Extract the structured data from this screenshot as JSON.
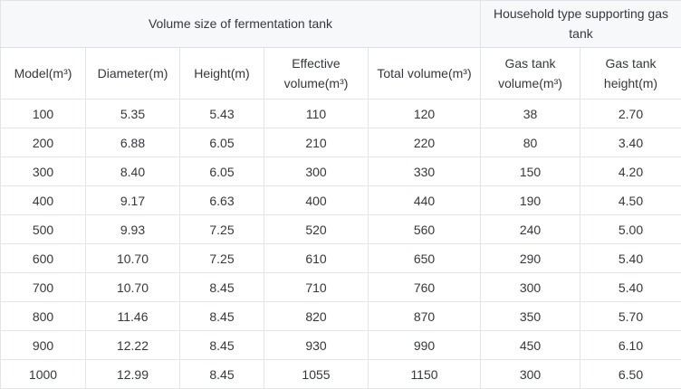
{
  "table": {
    "group_headers": [
      {
        "label": "Volume size of fermentation tank",
        "colspan": 5
      },
      {
        "label": "Household type supporting gas tank",
        "colspan": 2
      }
    ],
    "columns": [
      "Model(m³)",
      "Diameter(m)",
      "Height(m)",
      "Effective volume(m³)",
      "Total volume(m³)",
      "Gas tank volume(m³)",
      "Gas tank height(m)"
    ],
    "rows": [
      [
        "100",
        "5.35",
        "5.43",
        "110",
        "120",
        "38",
        "2.70"
      ],
      [
        "200",
        "6.88",
        "6.05",
        "210",
        "220",
        "80",
        "3.40"
      ],
      [
        "300",
        "8.40",
        "6.05",
        "300",
        "330",
        "150",
        "4.20"
      ],
      [
        "400",
        "9.17",
        "6.63",
        "400",
        "440",
        "190",
        "4.50"
      ],
      [
        "500",
        "9.93",
        "7.25",
        "520",
        "560",
        "240",
        "5.00"
      ],
      [
        "600",
        "10.70",
        "7.25",
        "610",
        "650",
        "290",
        "5.40"
      ],
      [
        "700",
        "10.70",
        "8.45",
        "710",
        "760",
        "300",
        "5.40"
      ],
      [
        "800",
        "11.46",
        "8.45",
        "820",
        "870",
        "350",
        "5.70"
      ],
      [
        "900",
        "12.22",
        "8.45",
        "930",
        "990",
        "450",
        "6.10"
      ],
      [
        "1000",
        "12.99",
        "8.45",
        "1055",
        "1150",
        "300",
        "6.50"
      ]
    ]
  },
  "colors": {
    "group_header_bg": "#f7f8fa",
    "border": "#e2e4e8",
    "outer_border": "#d3d6da",
    "text": "#34383d"
  }
}
